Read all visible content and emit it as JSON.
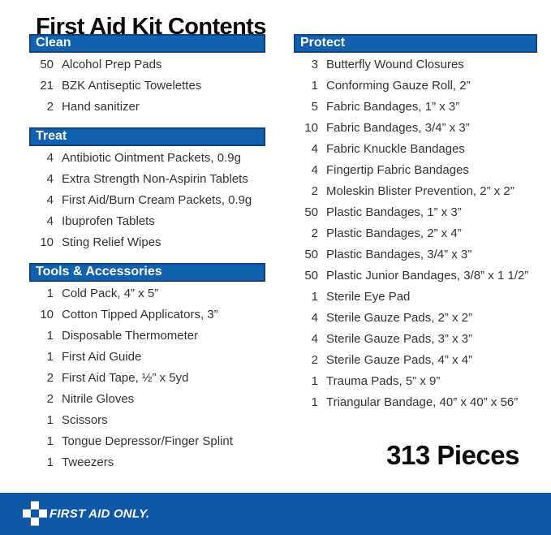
{
  "title": "First Aid Kit Contents",
  "colors": {
    "bar_blue": "#1261AE",
    "bar_border": "#0C4486",
    "footer_blue": "#1157A7",
    "text": "#333333"
  },
  "sections_left": [
    {
      "header": "Clean",
      "items": [
        {
          "qty": "50",
          "name": "Alcohol Prep Pads"
        },
        {
          "qty": "21",
          "name": "BZK Antiseptic Towelettes"
        },
        {
          "qty": "2",
          "name": "Hand sanitizer"
        }
      ]
    },
    {
      "header": "Treat",
      "items": [
        {
          "qty": "4",
          "name": "Antibiotic Ointment Packets, 0.9g"
        },
        {
          "qty": "4",
          "name": "Extra Strength Non-Aspirin Tablets"
        },
        {
          "qty": "4",
          "name": "First Aid/Burn Cream Packets, 0.9g"
        },
        {
          "qty": "4",
          "name": "Ibuprofen Tablets"
        },
        {
          "qty": "10",
          "name": "Sting Relief Wipes"
        }
      ]
    },
    {
      "header": "Tools & Accessories",
      "items": [
        {
          "qty": "1",
          "name": "Cold Pack, 4” x 5”"
        },
        {
          "qty": "10",
          "name": "Cotton Tipped Applicators, 3”"
        },
        {
          "qty": "1",
          "name": "Disposable Thermometer"
        },
        {
          "qty": "1",
          "name": "First Aid Guide"
        },
        {
          "qty": "2",
          "name": "First Aid Tape, ½” x 5yd"
        },
        {
          "qty": "2",
          "name": "Nitrile Gloves"
        },
        {
          "qty": "1",
          "name": "Scissors"
        },
        {
          "qty": "1",
          "name": "Tongue Depressor/Finger Splint"
        },
        {
          "qty": "1",
          "name": "Tweezers"
        }
      ]
    }
  ],
  "sections_right": [
    {
      "header": "Protect",
      "items": [
        {
          "qty": "3",
          "name": "Butterfly Wound Closures"
        },
        {
          "qty": "1",
          "name": "Conforming Gauze Roll, 2”"
        },
        {
          "qty": "5",
          "name": "Fabric Bandages, 1” x 3”"
        },
        {
          "qty": "10",
          "name": "Fabric Bandages, 3/4” x 3”"
        },
        {
          "qty": "4",
          "name": "Fabric Knuckle Bandages"
        },
        {
          "qty": "4",
          "name": "Fingertip Fabric Bandages"
        },
        {
          "qty": "2",
          "name": "Moleskin Blister Prevention, 2” x 2”"
        },
        {
          "qty": "50",
          "name": "Plastic Bandages, 1” x 3”"
        },
        {
          "qty": "2",
          "name": "Plastic Bandages, 2” x 4”"
        },
        {
          "qty": "50",
          "name": "Plastic Bandages, 3/4” x 3”"
        },
        {
          "qty": "50",
          "name": "Plastic Junior Bandages, 3/8” x 1 1/2”"
        },
        {
          "qty": "1",
          "name": "Sterile Eye Pad"
        },
        {
          "qty": "4",
          "name": "Sterile Gauze Pads, 2” x 2”"
        },
        {
          "qty": "4",
          "name": "Sterile Gauze Pads, 3” x 3”"
        },
        {
          "qty": "2",
          "name": "Sterile Gauze Pads, 4” x 4”"
        },
        {
          "qty": "1",
          "name": "Trauma Pads, 5” x 9”"
        },
        {
          "qty": "1",
          "name": "Triangular Bandage, 40” x 40” x 56”"
        }
      ]
    }
  ],
  "total_label": "313 Pieces",
  "footer": {
    "brand": "FIRST AID ONLY."
  }
}
